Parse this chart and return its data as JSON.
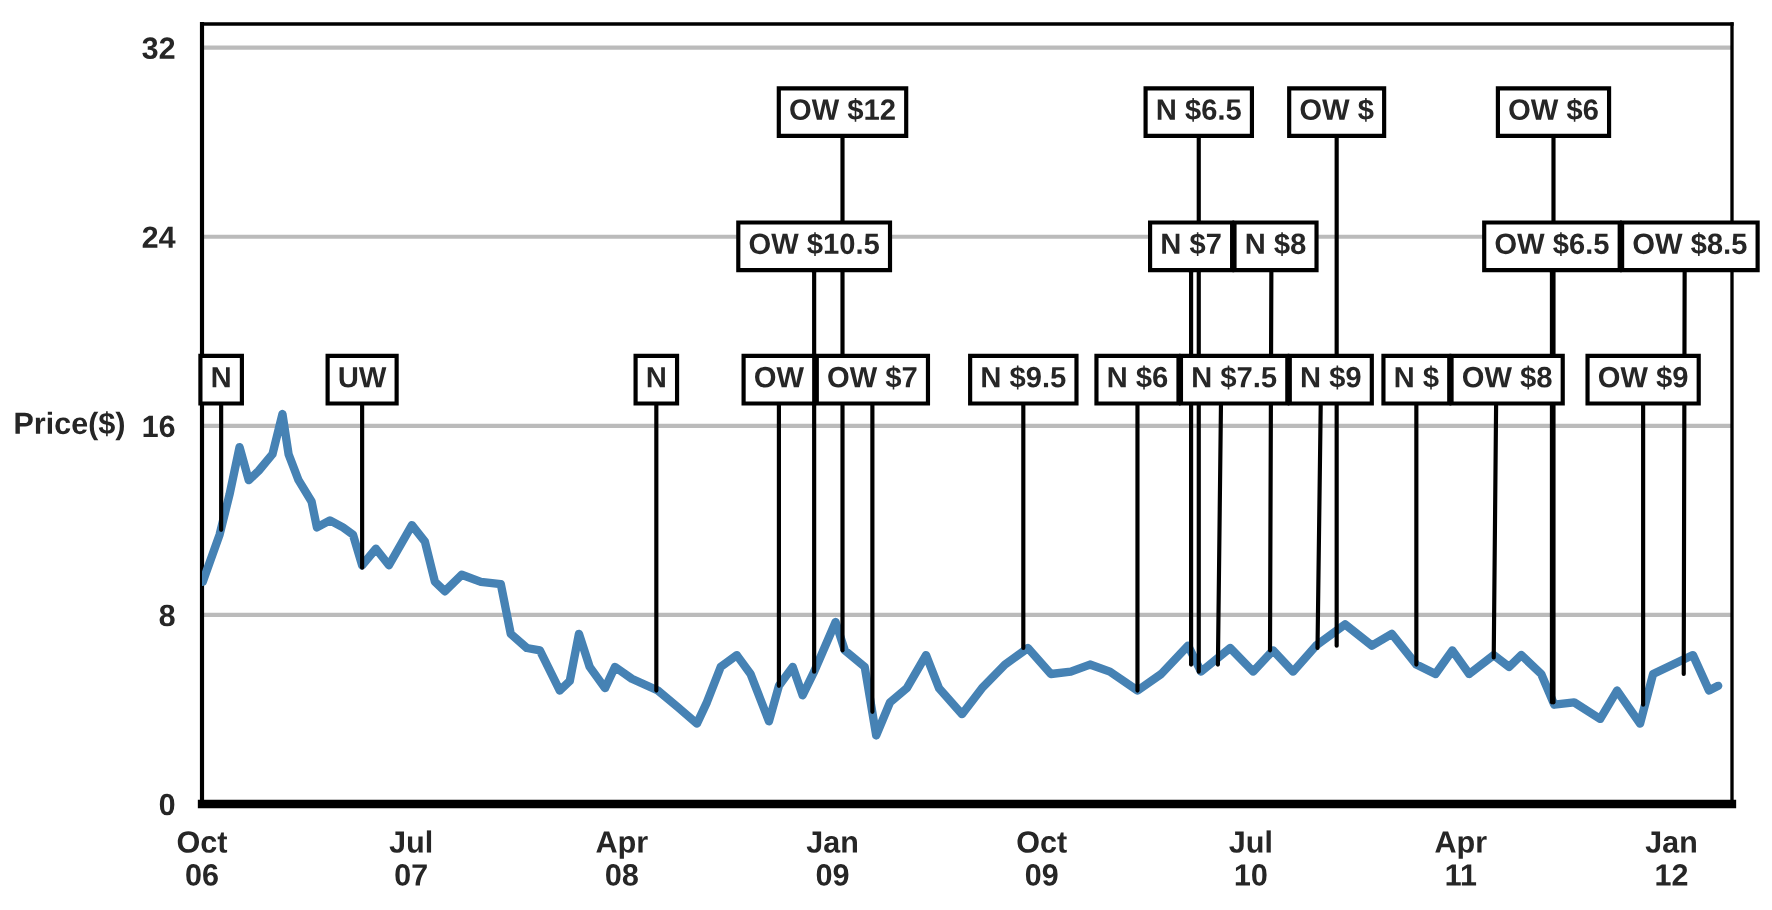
{
  "chart_data": {
    "type": "line",
    "ylabel": "Price($)",
    "x": [
      "2006-10-02",
      "2006-10-24",
      "2006-11-06",
      "2006-11-19",
      "2006-12-01",
      "2006-12-14",
      "2007-01-01",
      "2007-01-14",
      "2007-01-22",
      "2007-02-04",
      "2007-02-21",
      "2007-02-28",
      "2007-03-17",
      "2007-04-03",
      "2007-04-16",
      "2007-04-28",
      "2007-05-16",
      "2007-06-02",
      "2007-07-02",
      "2007-07-19",
      "2007-08-01",
      "2007-08-14",
      "2007-09-05",
      "2007-09-30",
      "2007-10-26",
      "2007-11-08",
      "2007-11-29",
      "2007-12-16",
      "2008-01-11",
      "2008-01-24",
      "2008-02-05",
      "2008-02-19",
      "2008-03-10",
      "2008-03-23",
      "2008-04-14",
      "2008-05-18",
      "2008-06-13",
      "2008-07-08",
      "2008-07-21",
      "2008-08-08",
      "2008-08-29",
      "2008-09-16",
      "2008-10-10",
      "2008-10-23",
      "2008-11-10",
      "2008-11-23",
      "2008-12-08",
      "2009-01-05",
      "2009-01-17",
      "2009-02-12",
      "2009-02-27",
      "2009-03-17",
      "2009-04-08",
      "2009-05-03",
      "2009-05-20",
      "2009-06-19",
      "2009-07-15",
      "2009-08-14",
      "2009-09-13",
      "2009-10-13",
      "2009-11-08",
      "2009-12-03",
      "2009-12-29",
      "2010-02-03",
      "2010-03-06",
      "2010-04-10",
      "2010-04-27",
      "2010-06-04",
      "2010-07-04",
      "2010-07-30",
      "2010-08-25",
      "2010-09-24",
      "2010-11-01",
      "2010-12-06",
      "2011-01-01",
      "2011-02-02",
      "2011-02-27",
      "2011-03-21",
      "2011-04-12",
      "2011-05-14",
      "2011-06-03",
      "2011-06-19",
      "2011-07-15",
      "2011-08-01",
      "2011-08-27",
      "2011-09-30",
      "2011-10-22",
      "2011-11-21",
      "2011-12-08",
      "2012-01-03",
      "2012-01-29",
      "2012-02-19",
      "2012-03-02"
    ],
    "series": [
      {
        "color": "#4682b4",
        "values": [
          9.4,
          11.4,
          13.1,
          15.1,
          13.7,
          14.1,
          14.8,
          16.5,
          14.8,
          13.7,
          12.8,
          11.7,
          12.0,
          11.7,
          11.4,
          10.1,
          10.8,
          10.1,
          11.8,
          11.1,
          9.4,
          9.0,
          9.7,
          9.4,
          9.3,
          7.2,
          6.6,
          6.5,
          4.8,
          5.2,
          7.2,
          5.8,
          4.9,
          5.8,
          5.3,
          4.8,
          4.1,
          3.4,
          4.3,
          5.8,
          6.3,
          5.5,
          3.5,
          5.0,
          5.8,
          4.6,
          5.6,
          7.7,
          6.5,
          5.8,
          2.9,
          4.3,
          4.9,
          6.3,
          4.9,
          3.8,
          4.9,
          5.9,
          6.6,
          5.5,
          5.6,
          5.9,
          5.6,
          4.8,
          5.5,
          6.7,
          5.6,
          6.6,
          5.6,
          6.5,
          5.6,
          6.7,
          7.6,
          6.7,
          7.2,
          5.9,
          5.5,
          6.5,
          5.5,
          6.3,
          5.8,
          6.3,
          5.5,
          4.2,
          4.3,
          3.6,
          4.8,
          3.4,
          5.5,
          5.9,
          6.3,
          4.8,
          5.0
        ]
      }
    ],
    "xlim": [
      "2006-10-01",
      "2012-03-20"
    ],
    "xticks": [
      {
        "value": "2006-10-01",
        "label": "Oct\n06"
      },
      {
        "value": "2007-07-01",
        "label": "Jul\n07"
      },
      {
        "value": "2008-04-01",
        "label": "Apr\n08"
      },
      {
        "value": "2009-01-01",
        "label": "Jan\n09"
      },
      {
        "value": "2009-10-01",
        "label": "Oct\n09"
      },
      {
        "value": "2010-07-01",
        "label": "Jul\n10"
      },
      {
        "value": "2011-04-01",
        "label": "Apr\n11"
      },
      {
        "value": "2012-01-01",
        "label": "Jan\n12"
      }
    ],
    "ylim": [
      0,
      33
    ],
    "yticks": [
      0,
      8,
      16,
      24,
      32
    ],
    "grid": "y",
    "line_style": "solid",
    "annotations": [
      {
        "text": "N",
        "x": "2006-10-26",
        "y": 11.6
      },
      {
        "text": "UW",
        "x": "2007-04-28",
        "y": 10.0
      },
      {
        "text": "N",
        "x": "2008-05-16",
        "y": 4.8
      },
      {
        "text": "OW",
        "x": "2008-10-23",
        "y": 5.0
      },
      {
        "text": "OW $10.5",
        "x": "2008-12-08",
        "y": 5.6
      },
      {
        "text": "OW $12",
        "x": "2009-01-14",
        "y": 6.5
      },
      {
        "text": "OW $7",
        "x": "2009-02-22",
        "y": 3.9
      },
      {
        "text": "N $9.5",
        "x": "2009-09-07",
        "y": 6.6
      },
      {
        "text": "N $6",
        "x": "2010-02-03",
        "y": 4.8
      },
      {
        "text": "N $7",
        "x": "2010-04-14",
        "y": 5.9
      },
      {
        "text": "N $6.5",
        "x": "2010-04-24",
        "y": 5.6
      },
      {
        "text": "N $7.5",
        "x": "2010-05-19",
        "y": 5.9
      },
      {
        "text": "N $8",
        "x": "2010-07-26",
        "y": 6.5
      },
      {
        "text": "N $9",
        "x": "2010-09-26",
        "y": 6.6
      },
      {
        "text": "OW $",
        "x": "2010-10-21",
        "y": 6.7
      },
      {
        "text": "N $",
        "x": "2011-02-02",
        "y": 5.9
      },
      {
        "text": "OW $8",
        "x": "2011-05-14",
        "y": 6.2
      },
      {
        "text": "OW $6.5",
        "x": "2011-07-29",
        "y": 4.3
      },
      {
        "text": "OW $6",
        "x": "2011-07-31",
        "y": 4.3
      },
      {
        "text": "OW $9",
        "x": "2011-11-25",
        "y": 4.2
      },
      {
        "text": "OW $8.5",
        "x": "2012-01-17",
        "y": 5.5
      }
    ]
  }
}
